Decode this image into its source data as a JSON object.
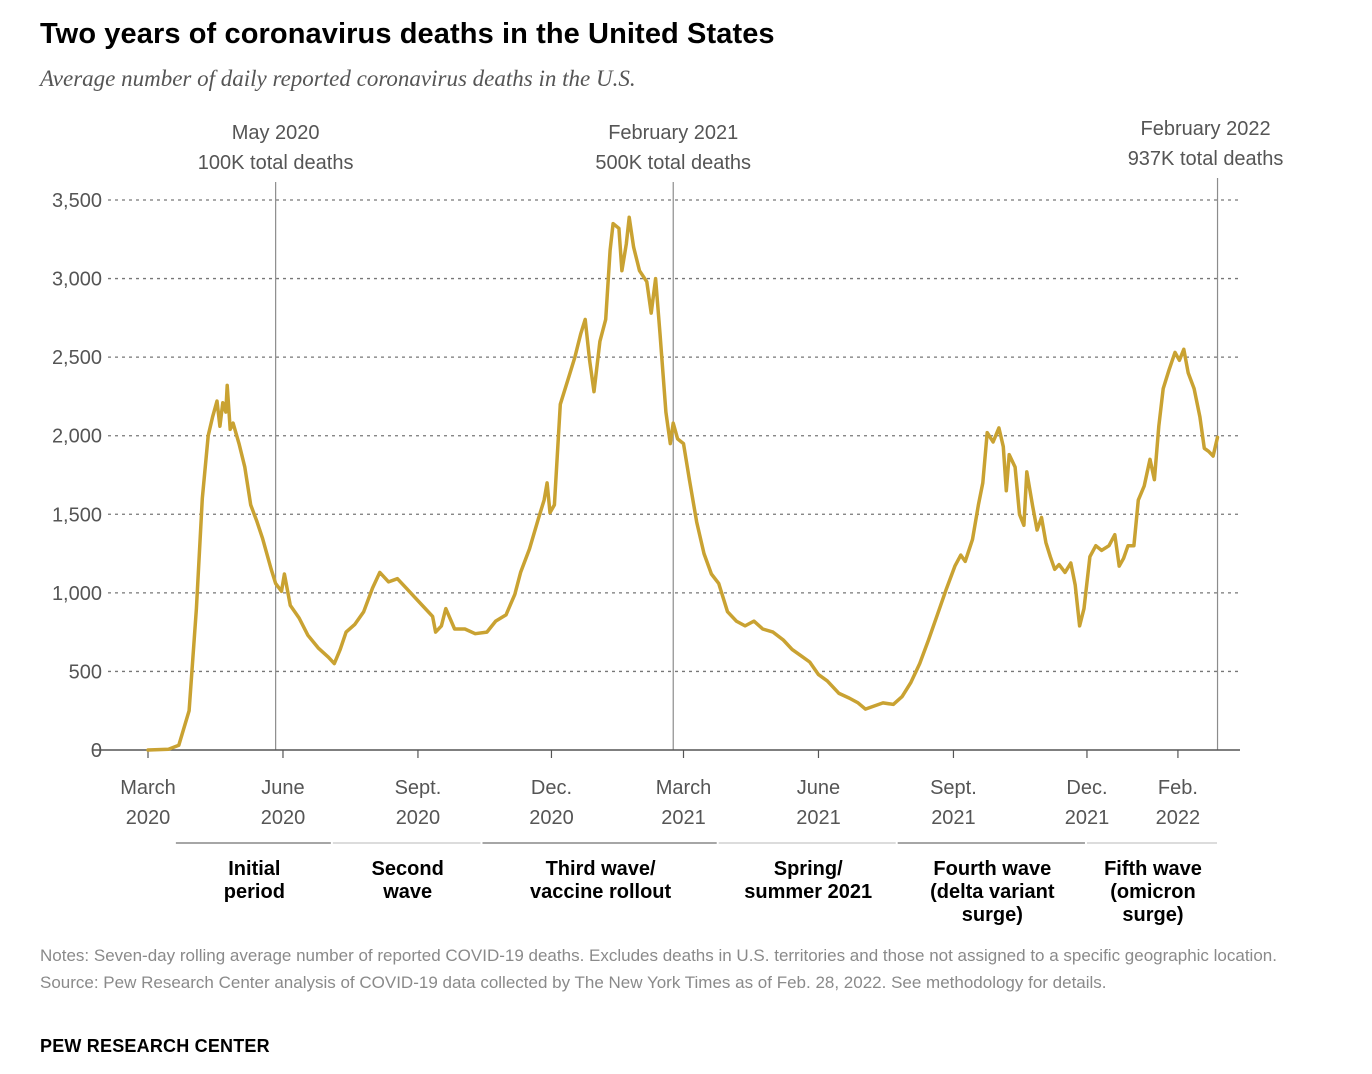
{
  "title": "Two years of coronavirus deaths in the United States",
  "subtitle": "Average number of daily reported coronavirus deaths in the U.S.",
  "notes": "Notes: Seven-day rolling average number of reported COVID-19 deaths. Excludes deaths in U.S. territories and those not assigned to a specific geographic location.",
  "source": "Source: Pew Research Center analysis of COVID-19 data collected by The New York Times as of Feb. 28, 2022. See methodology for details.",
  "brand": "PEW RESEARCH CENTER",
  "colors": {
    "line": "#c9a232",
    "grid": "#777777",
    "axis": "#555555",
    "band": "#a6a6a6"
  },
  "chart_data": {
    "type": "line",
    "title": "Two years of coronavirus deaths in the United States",
    "subtitle": "Average number of daily reported coronavirus deaths in the U.S.",
    "xlabel": "",
    "ylabel": "",
    "ylim": [
      0,
      3500
    ],
    "xlim": [
      "2020-03-01",
      "2022-03-01"
    ],
    "y_ticks": [
      0,
      500,
      1000,
      1500,
      2000,
      2500,
      3000,
      3500
    ],
    "y_tick_labels": [
      "0",
      "500",
      "1,000",
      "1,500",
      "2,000",
      "2,500",
      "3,000",
      "3,500"
    ],
    "x_ticks": [
      {
        "date": "2020-03-01",
        "line1": "March",
        "line2": "2020"
      },
      {
        "date": "2020-06-01",
        "line1": "June",
        "line2": "2020"
      },
      {
        "date": "2020-09-01",
        "line1": "Sept.",
        "line2": "2020"
      },
      {
        "date": "2020-12-01",
        "line1": "Dec.",
        "line2": "2020"
      },
      {
        "date": "2021-03-01",
        "line1": "March",
        "line2": "2021"
      },
      {
        "date": "2021-06-01",
        "line1": "June",
        "line2": "2021"
      },
      {
        "date": "2021-09-01",
        "line1": "Sept.",
        "line2": "2021"
      },
      {
        "date": "2021-12-01",
        "line1": "Dec.",
        "line2": "2021"
      },
      {
        "date": "2022-02-01",
        "line1": "Feb.",
        "line2": "2022"
      }
    ],
    "grid": true,
    "milestones": [
      {
        "date": "2020-05-27",
        "line1": "May 2020",
        "line2": "100K total deaths"
      },
      {
        "date": "2021-02-22",
        "line1": "February 2021",
        "line2": "500K total deaths"
      },
      {
        "date": "2022-02-28",
        "line1": "February 2022",
        "line2": "937K total deaths"
      }
    ],
    "periods": [
      {
        "start": "2020-03-20",
        "end": "2020-07-05",
        "lines": [
          "Initial",
          "period"
        ]
      },
      {
        "start": "2020-07-05",
        "end": "2020-10-15",
        "lines": [
          "Second",
          "wave"
        ]
      },
      {
        "start": "2020-10-15",
        "end": "2021-03-25",
        "lines": [
          "Third wave/",
          "vaccine rollout"
        ]
      },
      {
        "start": "2021-03-25",
        "end": "2021-07-25",
        "lines": [
          "Spring/",
          "summer 2021"
        ]
      },
      {
        "start": "2021-07-25",
        "end": "2021-12-01",
        "lines": [
          "Fourth wave",
          "(delta variant",
          "surge)"
        ]
      },
      {
        "start": "2021-12-01",
        "end": "2022-03-01",
        "lines": [
          "Fifth wave",
          "(omicron",
          "surge)"
        ]
      }
    ],
    "series": [
      {
        "values": [
          [
            "2020-03-01",
            0
          ],
          [
            "2020-03-15",
            5
          ],
          [
            "2020-03-22",
            30
          ],
          [
            "2020-03-29",
            250
          ],
          [
            "2020-04-03",
            900
          ],
          [
            "2020-04-07",
            1600
          ],
          [
            "2020-04-11",
            2000
          ],
          [
            "2020-04-14",
            2120
          ],
          [
            "2020-04-17",
            2220
          ],
          [
            "2020-04-19",
            2060
          ],
          [
            "2020-04-21",
            2210
          ],
          [
            "2020-04-23",
            2150
          ],
          [
            "2020-04-24",
            2320
          ],
          [
            "2020-04-26",
            2040
          ],
          [
            "2020-04-28",
            2080
          ],
          [
            "2020-05-02",
            1950
          ],
          [
            "2020-05-06",
            1800
          ],
          [
            "2020-05-10",
            1560
          ],
          [
            "2020-05-14",
            1460
          ],
          [
            "2020-05-18",
            1350
          ],
          [
            "2020-05-24",
            1150
          ],
          [
            "2020-05-27",
            1060
          ],
          [
            "2020-05-31",
            1010
          ],
          [
            "2020-06-02",
            1120
          ],
          [
            "2020-06-06",
            920
          ],
          [
            "2020-06-12",
            840
          ],
          [
            "2020-06-18",
            730
          ],
          [
            "2020-06-25",
            650
          ],
          [
            "2020-07-02",
            590
          ],
          [
            "2020-07-06",
            550
          ],
          [
            "2020-07-10",
            640
          ],
          [
            "2020-07-14",
            750
          ],
          [
            "2020-07-20",
            800
          ],
          [
            "2020-07-26",
            880
          ],
          [
            "2020-08-01",
            1030
          ],
          [
            "2020-08-06",
            1130
          ],
          [
            "2020-08-12",
            1070
          ],
          [
            "2020-08-18",
            1090
          ],
          [
            "2020-08-24",
            1030
          ],
          [
            "2020-08-30",
            970
          ],
          [
            "2020-09-05",
            910
          ],
          [
            "2020-09-11",
            850
          ],
          [
            "2020-09-13",
            750
          ],
          [
            "2020-09-17",
            790
          ],
          [
            "2020-09-20",
            900
          ],
          [
            "2020-09-26",
            770
          ],
          [
            "2020-10-03",
            770
          ],
          [
            "2020-10-10",
            740
          ],
          [
            "2020-10-18",
            750
          ],
          [
            "2020-10-24",
            820
          ],
          [
            "2020-10-31",
            860
          ],
          [
            "2020-11-06",
            990
          ],
          [
            "2020-11-10",
            1130
          ],
          [
            "2020-11-16",
            1280
          ],
          [
            "2020-11-22",
            1470
          ],
          [
            "2020-11-26",
            1590
          ],
          [
            "2020-11-28",
            1700
          ],
          [
            "2020-11-30",
            1510
          ],
          [
            "2020-12-03",
            1560
          ],
          [
            "2020-12-07",
            2200
          ],
          [
            "2020-12-13",
            2380
          ],
          [
            "2020-12-17",
            2500
          ],
          [
            "2020-12-21",
            2650
          ],
          [
            "2020-12-24",
            2740
          ],
          [
            "2020-12-27",
            2480
          ],
          [
            "2020-12-30",
            2280
          ],
          [
            "2021-01-03",
            2600
          ],
          [
            "2021-01-07",
            2740
          ],
          [
            "2021-01-10",
            3180
          ],
          [
            "2021-01-12",
            3350
          ],
          [
            "2021-01-16",
            3320
          ],
          [
            "2021-01-18",
            3050
          ],
          [
            "2021-01-21",
            3220
          ],
          [
            "2021-01-23",
            3390
          ],
          [
            "2021-01-26",
            3200
          ],
          [
            "2021-01-30",
            3050
          ],
          [
            "2021-02-04",
            2980
          ],
          [
            "2021-02-07",
            2780
          ],
          [
            "2021-02-10",
            3000
          ],
          [
            "2021-02-13",
            2650
          ],
          [
            "2021-02-17",
            2150
          ],
          [
            "2021-02-20",
            1950
          ],
          [
            "2021-02-22",
            2080
          ],
          [
            "2021-02-25",
            1980
          ],
          [
            "2021-03-01",
            1950
          ],
          [
            "2021-03-05",
            1720
          ],
          [
            "2021-03-10",
            1450
          ],
          [
            "2021-03-15",
            1250
          ],
          [
            "2021-03-20",
            1120
          ],
          [
            "2021-03-25",
            1060
          ],
          [
            "2021-03-31",
            880
          ],
          [
            "2021-04-06",
            820
          ],
          [
            "2021-04-12",
            790
          ],
          [
            "2021-04-18",
            820
          ],
          [
            "2021-04-24",
            770
          ],
          [
            "2021-05-01",
            750
          ],
          [
            "2021-05-08",
            700
          ],
          [
            "2021-05-14",
            640
          ],
          [
            "2021-05-20",
            600
          ],
          [
            "2021-05-26",
            560
          ],
          [
            "2021-06-01",
            480
          ],
          [
            "2021-06-07",
            440
          ],
          [
            "2021-06-15",
            360
          ],
          [
            "2021-06-22",
            330
          ],
          [
            "2021-06-28",
            300
          ],
          [
            "2021-07-03",
            260
          ],
          [
            "2021-07-09",
            280
          ],
          [
            "2021-07-15",
            300
          ],
          [
            "2021-07-22",
            290
          ],
          [
            "2021-07-28",
            340
          ],
          [
            "2021-08-03",
            430
          ],
          [
            "2021-08-09",
            550
          ],
          [
            "2021-08-15",
            700
          ],
          [
            "2021-08-21",
            860
          ],
          [
            "2021-08-27",
            1020
          ],
          [
            "2021-09-02",
            1170
          ],
          [
            "2021-09-06",
            1240
          ],
          [
            "2021-09-09",
            1200
          ],
          [
            "2021-09-14",
            1340
          ],
          [
            "2021-09-18",
            1560
          ],
          [
            "2021-09-21",
            1700
          ],
          [
            "2021-09-24",
            2020
          ],
          [
            "2021-09-28",
            1960
          ],
          [
            "2021-10-02",
            2050
          ],
          [
            "2021-10-05",
            1930
          ],
          [
            "2021-10-07",
            1650
          ],
          [
            "2021-10-09",
            1880
          ],
          [
            "2021-10-13",
            1800
          ],
          [
            "2021-10-16",
            1500
          ],
          [
            "2021-10-19",
            1430
          ],
          [
            "2021-10-21",
            1770
          ],
          [
            "2021-10-25",
            1550
          ],
          [
            "2021-10-28",
            1400
          ],
          [
            "2021-10-31",
            1480
          ],
          [
            "2021-11-03",
            1320
          ],
          [
            "2021-11-06",
            1230
          ],
          [
            "2021-11-09",
            1150
          ],
          [
            "2021-11-12",
            1180
          ],
          [
            "2021-11-16",
            1130
          ],
          [
            "2021-11-20",
            1190
          ],
          [
            "2021-11-23",
            1050
          ],
          [
            "2021-11-26",
            790
          ],
          [
            "2021-11-29",
            900
          ],
          [
            "2021-12-03",
            1230
          ],
          [
            "2021-12-07",
            1300
          ],
          [
            "2021-12-11",
            1270
          ],
          [
            "2021-12-16",
            1300
          ],
          [
            "2021-12-20",
            1370
          ],
          [
            "2021-12-23",
            1170
          ],
          [
            "2021-12-26",
            1220
          ],
          [
            "2021-12-29",
            1300
          ],
          [
            "2022-01-02",
            1300
          ],
          [
            "2022-01-05",
            1590
          ],
          [
            "2022-01-09",
            1680
          ],
          [
            "2022-01-13",
            1850
          ],
          [
            "2022-01-16",
            1720
          ],
          [
            "2022-01-19",
            2060
          ],
          [
            "2022-01-22",
            2300
          ],
          [
            "2022-01-26",
            2420
          ],
          [
            "2022-01-30",
            2530
          ],
          [
            "2022-02-02",
            2480
          ],
          [
            "2022-02-05",
            2550
          ],
          [
            "2022-02-08",
            2400
          ],
          [
            "2022-02-12",
            2300
          ],
          [
            "2022-02-16",
            2120
          ],
          [
            "2022-02-19",
            1920
          ],
          [
            "2022-02-22",
            1900
          ],
          [
            "2022-02-25",
            1870
          ],
          [
            "2022-02-28",
            1990
          ]
        ]
      }
    ]
  }
}
